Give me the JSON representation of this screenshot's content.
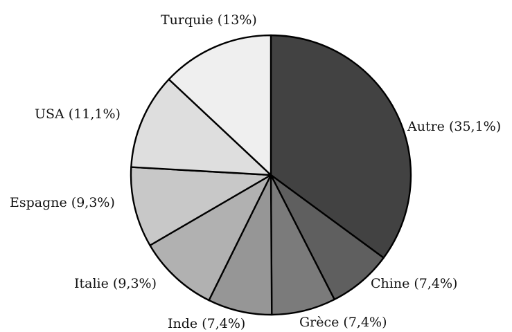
{
  "chart_data": {
    "type": "pie",
    "title": "",
    "start": "top",
    "direction": "clockwise",
    "slices": [
      {
        "label": "Autre (35,1%)",
        "value": 35.1,
        "color": "#424242",
        "key": "autre"
      },
      {
        "label": "Chine (7,4%)",
        "value": 7.4,
        "color": "#5f5f5f",
        "key": "chine"
      },
      {
        "label": "Grèce (7,4%)",
        "value": 7.4,
        "color": "#7b7b7b",
        "key": "grece"
      },
      {
        "label": "Inde (7,4%)",
        "value": 7.4,
        "color": "#969696",
        "key": "inde"
      },
      {
        "label": "Italie (9,3%)",
        "value": 9.3,
        "color": "#b1b1b1",
        "key": "italie"
      },
      {
        "label": "Espagne (9,3%)",
        "value": 9.3,
        "color": "#c8c8c8",
        "key": "espagne"
      },
      {
        "label": "USA (11,1%)",
        "value": 11.1,
        "color": "#dedede",
        "key": "usa"
      },
      {
        "label": "Turquie (13%)",
        "value": 13.0,
        "color": "#efefef",
        "key": "turquie"
      }
    ]
  }
}
